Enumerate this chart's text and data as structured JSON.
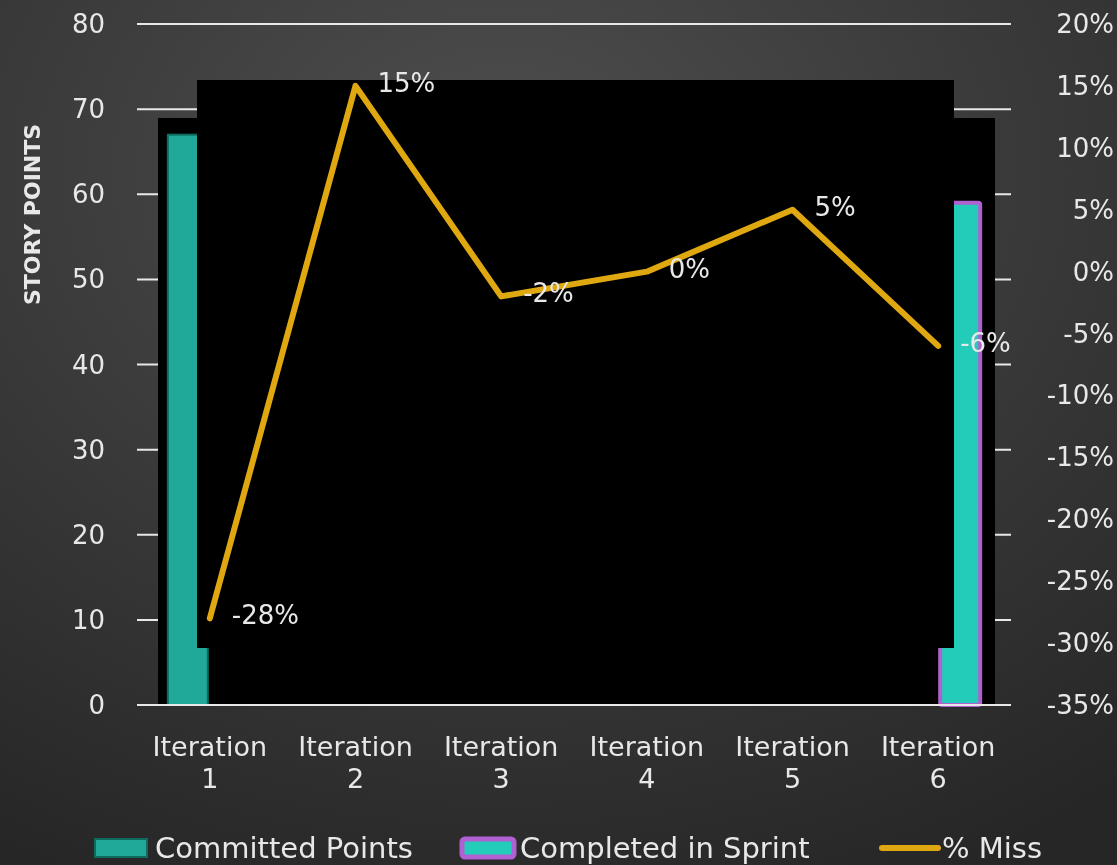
{
  "chart_data": {
    "type": "bar",
    "ylabel": "STORY POINTS",
    "categories": [
      "Iteration 1",
      "Iteration 2",
      "Iteration 3",
      "Iteration 4",
      "Iteration 5",
      "Iteration 6"
    ],
    "series": [
      {
        "name": "Committed Points",
        "color": "#20a898",
        "values": [
          67,
          null,
          null,
          null,
          null,
          null
        ]
      },
      {
        "name": "Completed in Sprint",
        "color": "#22ccb8",
        "values": [
          null,
          null,
          null,
          null,
          null,
          59
        ]
      },
      {
        "name": "% Miss",
        "type": "line",
        "axis": "y2",
        "color": "#e0a810",
        "values": [
          -28,
          15,
          -2,
          0,
          5,
          -6
        ],
        "value_labels": [
          "-28%",
          "15%",
          "-2%",
          "0%",
          "5%",
          "-6%"
        ]
      }
    ],
    "ylim": [
      0,
      80
    ],
    "yticks": [
      0,
      10,
      20,
      30,
      40,
      50,
      60,
      70,
      80
    ],
    "y2lim": [
      -35,
      20
    ],
    "y2ticks": [
      {
        "value": -35,
        "label": "-35%"
      },
      {
        "value": -30,
        "label": "-30%"
      },
      {
        "value": -25,
        "label": "-25%"
      },
      {
        "value": -20,
        "label": "-20%"
      },
      {
        "value": -15,
        "label": "-15%"
      },
      {
        "value": -10,
        "label": "-10%"
      },
      {
        "value": -5,
        "label": "-5%"
      },
      {
        "value": 0,
        "label": "0%"
      },
      {
        "value": 5,
        "label": "5%"
      },
      {
        "value": 10,
        "label": "10%"
      },
      {
        "value": 15,
        "label": "15%"
      },
      {
        "value": 20,
        "label": "20%"
      }
    ],
    "grid": "y",
    "legend": "bottom",
    "marker": "none",
    "line_style": "solid"
  }
}
